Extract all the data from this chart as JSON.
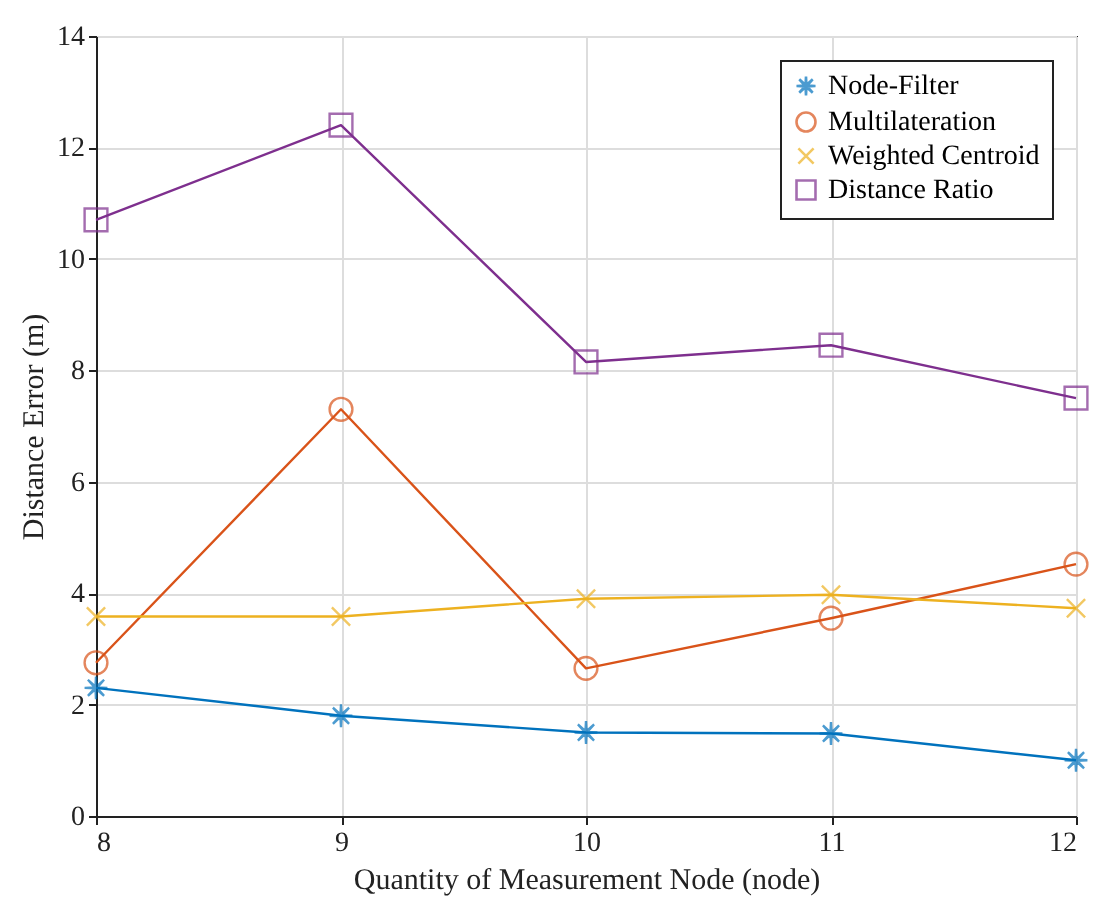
{
  "chart_data": {
    "type": "line",
    "xlabel": "Quantity of Measurement Node (node)",
    "ylabel": "Distance Error (m)",
    "x": [
      8,
      9,
      10,
      11,
      12
    ],
    "series": [
      {
        "name": "Node-Filter",
        "color": "#0072bd",
        "marker": "star",
        "values": [
          2.3,
          1.8,
          1.5,
          1.48,
          1.0
        ]
      },
      {
        "name": "Multilateration",
        "color": "#d95319",
        "marker": "circle",
        "values": [
          2.75,
          7.3,
          2.65,
          3.55,
          4.52
        ]
      },
      {
        "name": "Weighted Centroid",
        "color": "#edb120",
        "marker": "cross",
        "values": [
          3.58,
          3.58,
          3.9,
          3.97,
          3.73
        ]
      },
      {
        "name": "Distance Ratio",
        "color": "#7e2f8e",
        "marker": "square",
        "values": [
          10.7,
          12.4,
          8.15,
          8.45,
          7.5
        ]
      }
    ],
    "xlim": [
      8,
      12
    ],
    "xticks": [
      8,
      9,
      10,
      11,
      12
    ],
    "ylim": [
      0,
      14
    ],
    "yticks": [
      0,
      2,
      4,
      6,
      8,
      10,
      12,
      14
    ],
    "grid": true,
    "legend": "top right",
    "line_style": "solid"
  }
}
